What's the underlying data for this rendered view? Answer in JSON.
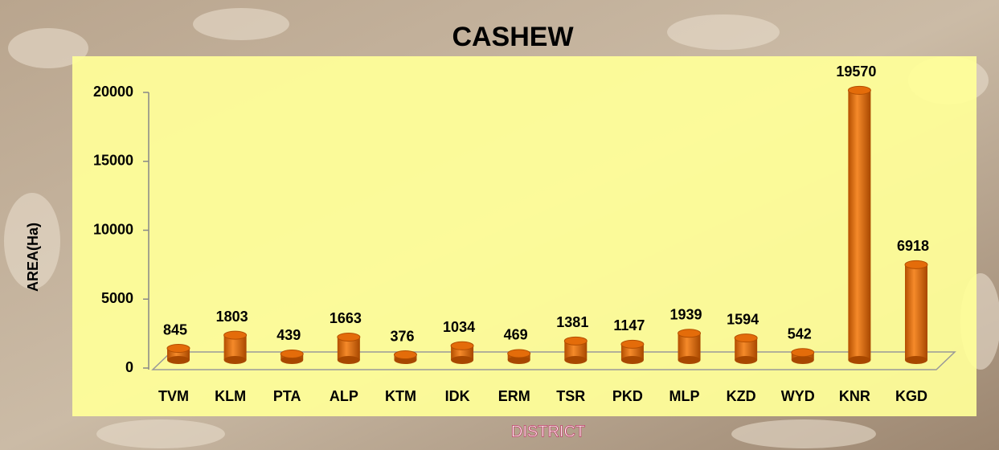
{
  "chart_data": {
    "type": "bar",
    "title": "CASHEW",
    "x_label": "DISTRICT",
    "y_label": "AREA(Ha)",
    "categories": [
      "TVM",
      "KLM",
      "PTA",
      "ALP",
      "KTM",
      "IDK",
      "ERM",
      "TSR",
      "PKD",
      "MLP",
      "KZD",
      "WYD",
      "KNR",
      "KGD"
    ],
    "values": [
      845,
      1803,
      439,
      1663,
      376,
      1034,
      469,
      1381,
      1147,
      1939,
      1594,
      542,
      19570,
      6918
    ],
    "color": "#e46c0a",
    "ylim": [
      0,
      20000
    ],
    "yticks": [
      0,
      5000,
      10000,
      15000,
      20000
    ]
  }
}
